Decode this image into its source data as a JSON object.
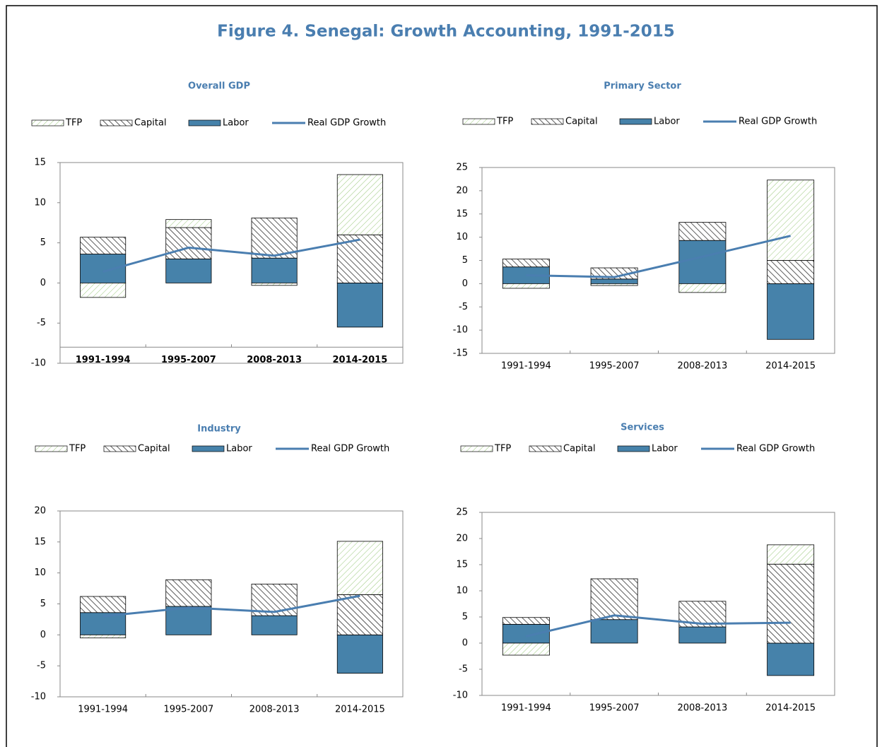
{
  "title": "Figure 4. Senegal: Growth Accounting, 1991-2015",
  "chart_data": [
    {
      "type": "bar",
      "stacked": true,
      "title": "Overall GDP",
      "bold_categories": true,
      "xaxis_at": -8,
      "categories": [
        "1991-1994",
        "1995-2007",
        "2008-2013",
        "2014-2015"
      ],
      "ylim": [
        -10,
        15
      ],
      "yticks": [
        -10,
        -5,
        0,
        5,
        10,
        15
      ],
      "series": [
        {
          "name": "TFP",
          "type": "bar",
          "fill": "hatch",
          "color": "#9cc97e",
          "values": [
            -1.8,
            1.0,
            -0.3,
            7.5
          ]
        },
        {
          "name": "Capital",
          "type": "bar",
          "fill": "hatch",
          "color": "#333333",
          "values": [
            2.1,
            3.9,
            5.0,
            6.0
          ]
        },
        {
          "name": "Labor",
          "type": "bar",
          "fill": "solid",
          "color": "#4682aa",
          "values": [
            3.6,
            3.0,
            3.1,
            -5.5
          ]
        },
        {
          "name": "Real GDP Growth",
          "type": "line",
          "color": "#4a7eb0",
          "values": [
            1.4,
            4.4,
            3.4,
            5.4
          ]
        }
      ]
    },
    {
      "type": "bar",
      "stacked": true,
      "title": "Primary Sector",
      "categories": [
        "1991-1994",
        "1995-2007",
        "2008-2013",
        "2014-2015"
      ],
      "ylim": [
        -15,
        25
      ],
      "yticks": [
        -15,
        -10,
        -5,
        0,
        5,
        10,
        15,
        20,
        25
      ],
      "series": [
        {
          "name": "TFP",
          "type": "bar",
          "fill": "hatch",
          "color": "#9cc97e",
          "values": [
            -1.0,
            -0.4,
            -1.9,
            17.3
          ]
        },
        {
          "name": "Capital",
          "type": "bar",
          "fill": "hatch",
          "color": "#333333",
          "values": [
            1.7,
            2.4,
            3.9,
            5.0
          ]
        },
        {
          "name": "Labor",
          "type": "bar",
          "fill": "solid",
          "color": "#4682aa",
          "values": [
            3.6,
            1.0,
            9.3,
            -12.0
          ]
        },
        {
          "name": "Real GDP Growth",
          "type": "line",
          "color": "#4a7eb0",
          "values": [
            1.8,
            1.4,
            5.8,
            10.3
          ]
        }
      ]
    },
    {
      "type": "bar",
      "stacked": true,
      "title": "Industry",
      "categories": [
        "1991-1994",
        "1995-2007",
        "2008-2013",
        "2014-2015"
      ],
      "ylim": [
        -10,
        20
      ],
      "yticks": [
        -10,
        -5,
        0,
        5,
        10,
        15,
        20
      ],
      "series": [
        {
          "name": "TFP",
          "type": "bar",
          "fill": "hatch",
          "color": "#9cc97e",
          "values": [
            -0.5,
            0,
            0,
            8.6
          ]
        },
        {
          "name": "Capital",
          "type": "bar",
          "fill": "hatch",
          "color": "#333333",
          "values": [
            2.6,
            4.3,
            5.1,
            6.5
          ]
        },
        {
          "name": "Labor",
          "type": "bar",
          "fill": "solid",
          "color": "#4682aa",
          "values": [
            3.6,
            4.6,
            3.1,
            -6.2
          ]
        },
        {
          "name": "Real GDP Growth",
          "type": "line",
          "color": "#4a7eb0",
          "values": [
            3.0,
            4.4,
            3.7,
            6.3
          ]
        }
      ]
    },
    {
      "type": "bar",
      "stacked": true,
      "title": "Services",
      "categories": [
        "1991-1994",
        "1995-2007",
        "2008-2013",
        "2014-2015"
      ],
      "ylim": [
        -10,
        25
      ],
      "yticks": [
        -10,
        -5,
        0,
        5,
        10,
        15,
        20,
        25
      ],
      "series": [
        {
          "name": "TFP",
          "type": "bar",
          "fill": "hatch",
          "color": "#9cc97e",
          "values": [
            -2.3,
            0,
            0,
            3.7
          ]
        },
        {
          "name": "Capital",
          "type": "bar",
          "fill": "hatch",
          "color": "#333333",
          "values": [
            1.3,
            7.8,
            4.9,
            15.1
          ]
        },
        {
          "name": "Labor",
          "type": "bar",
          "fill": "solid",
          "color": "#4682aa",
          "values": [
            3.6,
            4.5,
            3.1,
            -6.2
          ]
        },
        {
          "name": "Real GDP Growth",
          "type": "line",
          "color": "#4a7eb0",
          "values": [
            1.3,
            5.3,
            3.7,
            3.9
          ]
        }
      ]
    }
  ]
}
